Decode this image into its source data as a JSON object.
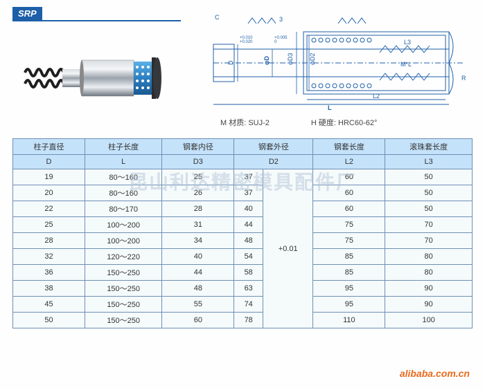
{
  "badge": "SRP",
  "watermark": "昆山利达精密模具配件厂",
  "source": "alibaba.com.cn",
  "notes": {
    "material": "M 材质: SUJ-2",
    "hardness": "H 硬度: HRC60-62°"
  },
  "diagram": {
    "labels": {
      "C": "C",
      "D": "D",
      "Dt": "φD",
      "D3": "φD3",
      "D2": "φD2",
      "L": "L",
      "L2": "L2",
      "L3": "L3",
      "MxL": "M*L",
      "R": "R",
      "three": "3"
    },
    "tol1": "+0.010\n+0.020",
    "tol2": "+0.005\n0",
    "colors": {
      "line": "#1d5fa8",
      "thin": "#3a75bb"
    }
  },
  "table": {
    "headers": [
      "柱子直径",
      "柱子长度",
      "钢套内径",
      "钢套外径",
      "钢套长度",
      "滚珠套长度"
    ],
    "symbols": [
      "D",
      "L",
      "D3",
      "D2",
      "L2",
      "L3"
    ],
    "tolerance": "+0.01",
    "rows": [
      {
        "D": "19",
        "L": "80～160",
        "D3": "25",
        "D2": "37",
        "L2": "60",
        "L3": "50"
      },
      {
        "D": "20",
        "L": "80～160",
        "D3": "26",
        "D2": "37",
        "L2": "60",
        "L3": "50"
      },
      {
        "D": "22",
        "L": "80～170",
        "D3": "28",
        "D2": "40",
        "L2": "60",
        "L3": "50"
      },
      {
        "D": "25",
        "L": "100～200",
        "D3": "31",
        "D2": "44",
        "L2": "75",
        "L3": "70"
      },
      {
        "D": "28",
        "L": "100～200",
        "D3": "34",
        "D2": "48",
        "L2": "75",
        "L3": "70"
      },
      {
        "D": "32",
        "L": "120～220",
        "D3": "40",
        "D2": "54",
        "L2": "85",
        "L3": "80"
      },
      {
        "D": "36",
        "L": "150～250",
        "D3": "44",
        "D2": "58",
        "L2": "85",
        "L3": "80"
      },
      {
        "D": "38",
        "L": "150～250",
        "D3": "48",
        "D2": "63",
        "L2": "95",
        "L3": "90"
      },
      {
        "D": "45",
        "L": "150～250",
        "D3": "55",
        "D2": "74",
        "L2": "95",
        "L3": "90"
      },
      {
        "D": "50",
        "L": "150～250",
        "D3": "60",
        "D2": "78",
        "L2": "110",
        "L3": "100"
      }
    ]
  },
  "product": {
    "body_color": "#b8bfc6",
    "body_hl": "#e6e9ed",
    "cap_color": "#4da0dc",
    "spring": "#2a2a2a",
    "retainer": "#6db4e6"
  }
}
